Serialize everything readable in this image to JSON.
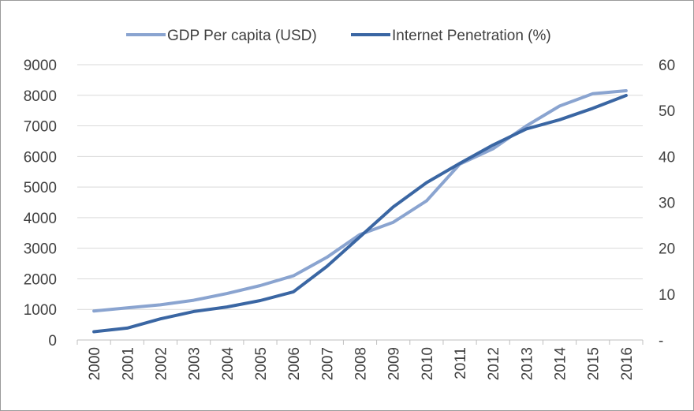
{
  "chart_data": {
    "type": "line",
    "title": "",
    "xlabel": "",
    "ylabel": "",
    "x": [
      "2000",
      "2001",
      "2002",
      "2003",
      "2004",
      "2005",
      "2006",
      "2007",
      "2008",
      "2009",
      "2010",
      "2011",
      "2012",
      "2013",
      "2014",
      "2015",
      "2016"
    ],
    "series": [
      {
        "name": "GDP Per capita (USD)",
        "axis": "left",
        "color": "#8aa4d0",
        "values": [
          950,
          1050,
          1150,
          1300,
          1520,
          1780,
          2100,
          2700,
          3450,
          3850,
          4550,
          5750,
          6250,
          7000,
          7650,
          8050,
          8150
        ]
      },
      {
        "name": "Internet Penetration (%)",
        "axis": "right",
        "color": "#3a66a3",
        "values": [
          1.8,
          2.6,
          4.6,
          6.2,
          7.2,
          8.6,
          10.5,
          16.0,
          22.5,
          29.0,
          34.3,
          38.5,
          42.5,
          46.0,
          48.0,
          50.5,
          53.3
        ]
      }
    ],
    "y_left": {
      "min": 0,
      "max": 9000,
      "ticks": [
        0,
        1000,
        2000,
        3000,
        4000,
        5000,
        6000,
        7000,
        8000,
        9000
      ],
      "tick_labels": [
        "0",
        "1000",
        "2000",
        "3000",
        "4000",
        "5000",
        "6000",
        "7000",
        "8000",
        "9000"
      ]
    },
    "y_right": {
      "min": 0,
      "max": 60,
      "ticks": [
        0,
        10,
        20,
        30,
        40,
        50,
        60
      ],
      "tick_labels": [
        "-",
        "10",
        "20",
        "30",
        "40",
        "50",
        "60"
      ]
    },
    "grid": true,
    "legend_position": "top"
  }
}
